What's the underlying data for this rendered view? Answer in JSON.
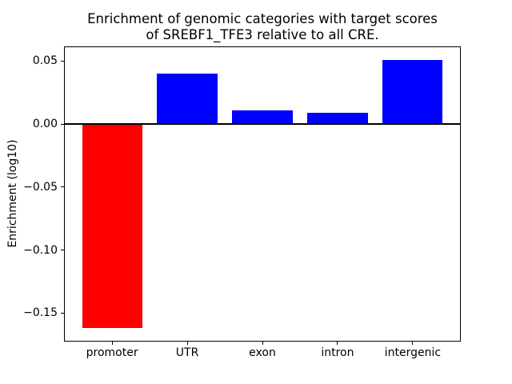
{
  "figure": {
    "title_line1": "Enrichment of genomic categories with target scores",
    "title_line2": "of SREBF1_TFE3 relative to all CRE."
  },
  "chart_data": {
    "type": "bar",
    "title": "Enrichment of genomic categories with target scores of SREBF1_TFE3 relative to all CRE.",
    "xlabel": "",
    "ylabel": "Enrichment (log10)",
    "categories": [
      "promoter",
      "UTR",
      "exon",
      "intron",
      "intergenic"
    ],
    "values": [
      -0.162,
      0.04,
      0.011,
      0.009,
      0.051
    ],
    "bar_colors": [
      "#ff0000",
      "#0000ff",
      "#0000ff",
      "#0000ff",
      "#0000ff"
    ],
    "ylim": [
      -0.1727,
      0.0617
    ],
    "yticks": [
      0.05,
      0.0,
      -0.05,
      -0.1,
      -0.15
    ],
    "ytick_labels": [
      "0.05",
      "0.00",
      "−0.05",
      "−0.10",
      "−0.15"
    ],
    "bar_width_frac": 0.8,
    "x_margin": 0.64,
    "zero_line": true,
    "grid": false,
    "legend": null,
    "background_color": "#ffffff",
    "frame_color": "#000000",
    "zero_line_color": "#000000"
  }
}
